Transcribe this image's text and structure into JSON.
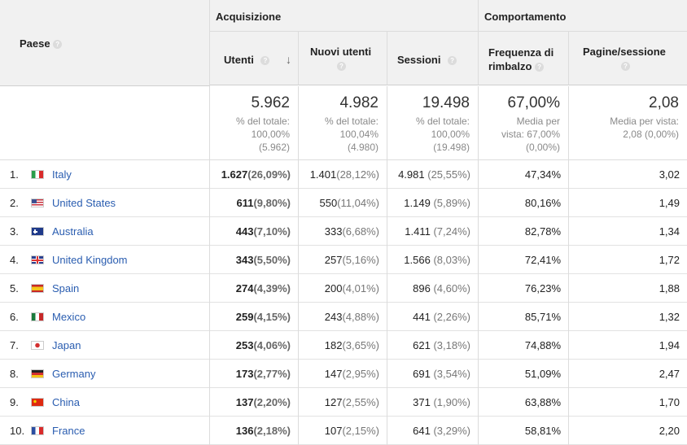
{
  "groups": {
    "acquisizione": "Acquisizione",
    "comportamento": "Comportamento"
  },
  "columns": {
    "paese": "Paese",
    "utenti": "Utenti",
    "nuovi_utenti": "Nuovi utenti",
    "sessioni": "Sessioni",
    "frequenza": "Frequenza di rimbalzo",
    "pagine": "Pagine/sessione"
  },
  "help_icon": "?",
  "sort_icon": "↓",
  "totals": {
    "utenti": {
      "value": "5.962",
      "line1": "% del totale:",
      "line2": "100,00%",
      "line3": "(5.962)"
    },
    "nuovi": {
      "value": "4.982",
      "line1": "% del totale:",
      "line2": "100,04%",
      "line3": "(4.980)"
    },
    "sessioni": {
      "value": "19.498",
      "line1": "% del totale:",
      "line2": "100,00%",
      "line3": "(19.498)"
    },
    "frequenza": {
      "value": "67,00%",
      "line1": "Media per",
      "line2": "vista: 67,00%",
      "line3": "(0,00%)"
    },
    "pagine": {
      "value": "2,08",
      "line1": "Media per vista:",
      "line2": "2,08 (0,00%)",
      "line3": ""
    }
  },
  "rows": [
    {
      "idx": "1.",
      "country": "Italy",
      "flag": "it",
      "utenti": "1.627",
      "utenti_pct": "(26,09%)",
      "nuovi": "1.401",
      "nuovi_pct": "(28,12%)",
      "sessioni": "4.981",
      "sessioni_pct": "(25,55%)",
      "frequenza": "47,34%",
      "pagine": "3,02"
    },
    {
      "idx": "2.",
      "country": "United States",
      "flag": "us",
      "utenti": "611",
      "utenti_pct": "(9,80%)",
      "nuovi": "550",
      "nuovi_pct": "(11,04%)",
      "sessioni": "1.149",
      "sessioni_pct": "(5,89%)",
      "frequenza": "80,16%",
      "pagine": "1,49"
    },
    {
      "idx": "3.",
      "country": "Australia",
      "flag": "au",
      "utenti": "443",
      "utenti_pct": "(7,10%)",
      "nuovi": "333",
      "nuovi_pct": "(6,68%)",
      "sessioni": "1.411",
      "sessioni_pct": "(7,24%)",
      "frequenza": "82,78%",
      "pagine": "1,34"
    },
    {
      "idx": "4.",
      "country": "United Kingdom",
      "flag": "gb",
      "utenti": "343",
      "utenti_pct": "(5,50%)",
      "nuovi": "257",
      "nuovi_pct": "(5,16%)",
      "sessioni": "1.566",
      "sessioni_pct": "(8,03%)",
      "frequenza": "72,41%",
      "pagine": "1,72"
    },
    {
      "idx": "5.",
      "country": "Spain",
      "flag": "es",
      "utenti": "274",
      "utenti_pct": "(4,39%)",
      "nuovi": "200",
      "nuovi_pct": "(4,01%)",
      "sessioni": "896",
      "sessioni_pct": "(4,60%)",
      "frequenza": "76,23%",
      "pagine": "1,88"
    },
    {
      "idx": "6.",
      "country": "Mexico",
      "flag": "mx",
      "utenti": "259",
      "utenti_pct": "(4,15%)",
      "nuovi": "243",
      "nuovi_pct": "(4,88%)",
      "sessioni": "441",
      "sessioni_pct": "(2,26%)",
      "frequenza": "85,71%",
      "pagine": "1,32"
    },
    {
      "idx": "7.",
      "country": "Japan",
      "flag": "jp",
      "utenti": "253",
      "utenti_pct": "(4,06%)",
      "nuovi": "182",
      "nuovi_pct": "(3,65%)",
      "sessioni": "621",
      "sessioni_pct": "(3,18%)",
      "frequenza": "74,88%",
      "pagine": "1,94"
    },
    {
      "idx": "8.",
      "country": "Germany",
      "flag": "de",
      "utenti": "173",
      "utenti_pct": "(2,77%)",
      "nuovi": "147",
      "nuovi_pct": "(2,95%)",
      "sessioni": "691",
      "sessioni_pct": "(3,54%)",
      "frequenza": "51,09%",
      "pagine": "2,47"
    },
    {
      "idx": "9.",
      "country": "China",
      "flag": "cn",
      "utenti": "137",
      "utenti_pct": "(2,20%)",
      "nuovi": "127",
      "nuovi_pct": "(2,55%)",
      "sessioni": "371",
      "sessioni_pct": "(1,90%)",
      "frequenza": "63,88%",
      "pagine": "1,70"
    },
    {
      "idx": "10.",
      "country": "France",
      "flag": "fr",
      "utenti": "136",
      "utenti_pct": "(2,18%)",
      "nuovi": "107",
      "nuovi_pct": "(2,15%)",
      "sessioni": "641",
      "sessioni_pct": "(3,29%)",
      "frequenza": "58,81%",
      "pagine": "2,20"
    }
  ]
}
